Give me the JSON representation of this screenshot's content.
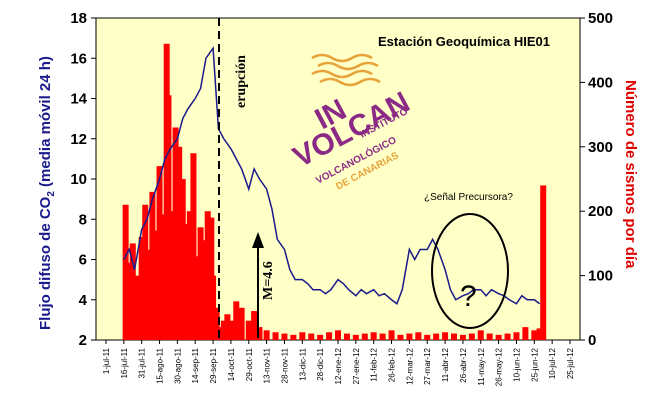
{
  "chart_data": {
    "type": "line",
    "title": "Estación Geoquímica HIE01",
    "ylabel_left": "Flujo difuso de CO",
    "ylabel_left_sub": "2",
    "ylabel_left_suffix": " (media móvil 24 h)",
    "ylabel_right": "Número de sismos por día",
    "ylim_left": [
      2,
      18
    ],
    "ylim_right": [
      0,
      500
    ],
    "yticks_left": [
      "2",
      "4",
      "6",
      "8",
      "10",
      "12",
      "14",
      "16",
      "18"
    ],
    "yticks_right": [
      "0",
      "100",
      "200",
      "300",
      "400",
      "500"
    ],
    "xticks": [
      "1-jul-11",
      "16-jul-11",
      "31-jul-11",
      "15-ago-11",
      "30-ago-11",
      "14-sep-11",
      "29-sep-11",
      "14-oct-11",
      "29-oct-11",
      "13-nov-11",
      "28-nov-11",
      "13-dic-11",
      "28-dic-11",
      "12-ene-12",
      "27-ene-12",
      "11-feb-12",
      "26-feb-12",
      "12-mar-12",
      "27-mar-12",
      "11-abr-12",
      "26-abr-12",
      "11-may-12",
      "26-may-12",
      "10-jun-12",
      "25-jun-12",
      "10-jul-12",
      "25-jul-12"
    ],
    "series": [
      {
        "name": "Flujo difuso de CO2",
        "color": "#1a1a8c",
        "axis": "left",
        "x_index": [
          1,
          1.3,
          1.6,
          2,
          2.3,
          2.6,
          3,
          3.3,
          3.6,
          4,
          4.3,
          4.6,
          5,
          5.3,
          5.6,
          6,
          6.3,
          6.6,
          7,
          7.3,
          7.6,
          8,
          8.3,
          8.6,
          9,
          9.3,
          9.6,
          10,
          10.3,
          10.6,
          11,
          11.3,
          11.6,
          12,
          12.3,
          12.6,
          13,
          13.3,
          13.6,
          14,
          14.3,
          14.6,
          15,
          15.3,
          15.6,
          16,
          16.3,
          16.6,
          17,
          17.3,
          17.6,
          18,
          18.3,
          18.6,
          19,
          19.3,
          19.6,
          20,
          20.3,
          20.6,
          21,
          21.3,
          21.6,
          22,
          22.3,
          22.6,
          23,
          23.3,
          23.6,
          24,
          24.3
        ],
        "values": [
          6,
          6.5,
          5.5,
          7.5,
          8,
          9,
          10,
          11,
          11.5,
          12,
          13,
          13.5,
          14,
          14.5,
          16,
          16.5,
          12.5,
          12,
          11.5,
          11,
          10.5,
          9.5,
          10.5,
          10,
          9.5,
          8.5,
          7,
          6.5,
          5.5,
          5,
          5,
          4.8,
          4.5,
          4.5,
          4.3,
          4.5,
          5,
          4.8,
          4.5,
          4.2,
          4.5,
          4.3,
          4.5,
          4.2,
          4.3,
          4,
          3.8,
          4.5,
          6.5,
          6,
          6.5,
          6.5,
          7,
          6.5,
          5.5,
          4.5,
          4,
          4.2,
          4.3,
          4.5,
          4.5,
          4.2,
          4.5,
          4.3,
          4.2,
          4,
          3.8,
          4.2,
          4,
          4,
          3.8
        ]
      },
      {
        "name": "Número de sismos por día",
        "color": "#ff0000",
        "axis": "right",
        "x_index": [
          1.1,
          1.3,
          1.5,
          1.8,
          2,
          2.2,
          2.4,
          2.6,
          2.8,
          3,
          3.2,
          3.4,
          3.5,
          3.7,
          3.9,
          4.1,
          4.3,
          4.5,
          4.7,
          4.9,
          5.1,
          5.3,
          5.5,
          5.7,
          5.9,
          6,
          6.2,
          6.4,
          6.6,
          6.8,
          7,
          7.3,
          7.6,
          8,
          8.3,
          8.6,
          9,
          9.5,
          10,
          10.5,
          11,
          11.5,
          12,
          12.5,
          13,
          13.5,
          14,
          14.5,
          15,
          15.5,
          16,
          16.5,
          17,
          17.5,
          18,
          18.5,
          19,
          19.5,
          20,
          20.5,
          21,
          21.5,
          22,
          22.5,
          23,
          23.5,
          24,
          24.3,
          24.5
        ],
        "values": [
          210,
          120,
          150,
          100,
          160,
          210,
          140,
          230,
          170,
          270,
          195,
          460,
          380,
          200,
          330,
          300,
          250,
          180,
          200,
          290,
          130,
          175,
          155,
          200,
          190,
          100,
          50,
          20,
          30,
          40,
          30,
          60,
          50,
          30,
          45,
          20,
          15,
          12,
          10,
          8,
          12,
          10,
          8,
          12,
          15,
          10,
          8,
          10,
          12,
          10,
          15,
          8,
          10,
          12,
          8,
          10,
          12,
          10,
          8,
          10,
          15,
          10,
          8,
          10,
          12,
          20,
          15,
          18,
          240
        ]
      }
    ],
    "annotations": {
      "eruption": "erupción",
      "magnitude": "M=4.6",
      "precursor": "¿Señal Precursora?",
      "question": "?"
    }
  },
  "logo": {
    "line1": "IN",
    "line2": "VOLCAN",
    "line3": "INSTITUTO",
    "line4": "VOLCANOLÓGICO",
    "line5": "DE CANARIAS",
    "purple": "#8b2a86",
    "orange": "#e8a23a"
  },
  "colors": {
    "plot_background": "#ffffc8",
    "co2_line": "#1a1a8c",
    "seismic_bars": "#ff0000"
  }
}
